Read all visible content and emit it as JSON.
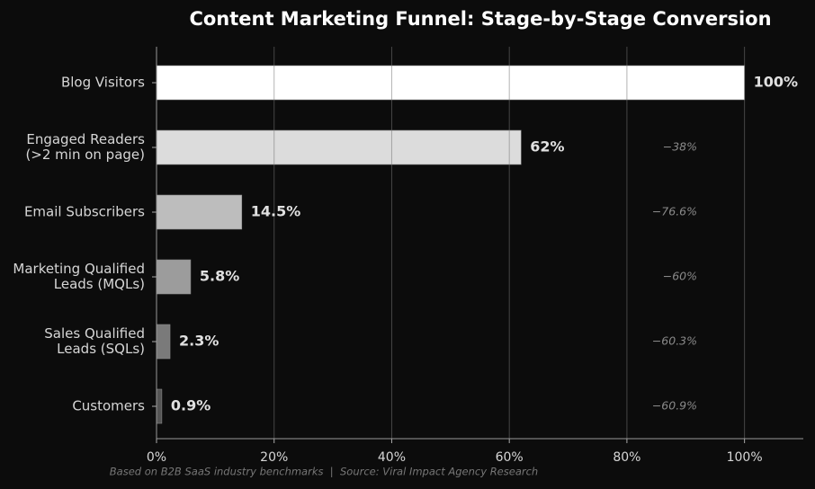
{
  "chart_data": {
    "type": "bar",
    "orientation": "horizontal",
    "title": "Content Marketing Funnel: Stage-by-Stage Conversion",
    "categories": [
      "Blog Visitors",
      "Engaged Readers\n(>2 min on page)",
      "Email Subscribers",
      "Marketing Qualified\nLeads (MQLs)",
      "Sales Qualified\nLeads (SQLs)",
      "Customers"
    ],
    "values": [
      100,
      62,
      14.5,
      5.8,
      2.3,
      0.9
    ],
    "value_labels": [
      "100%",
      "62%",
      "14.5%",
      "5.8%",
      "2.3%",
      "0.9%"
    ],
    "colors": [
      "#ffffff",
      "#dcdcdc",
      "#bdbdbd",
      "#9c9c9c",
      "#7a7a7a",
      "#555555"
    ],
    "annotations": [
      "−38%",
      "−76.6%",
      "−60%",
      "−60.3%",
      "−60.9%"
    ],
    "xlim": [
      0,
      110
    ],
    "xticks": [
      {
        "value": 0,
        "label": "0%"
      },
      {
        "value": 20,
        "label": "20%"
      },
      {
        "value": 40,
        "label": "40%"
      },
      {
        "value": 60,
        "label": "60%"
      },
      {
        "value": 80,
        "label": "80%"
      },
      {
        "value": 100,
        "label": "100%"
      }
    ],
    "grid": true,
    "footnote": "Based on B2B SaaS industry benchmarks  |  Source: Viral Impact Agency Research"
  }
}
